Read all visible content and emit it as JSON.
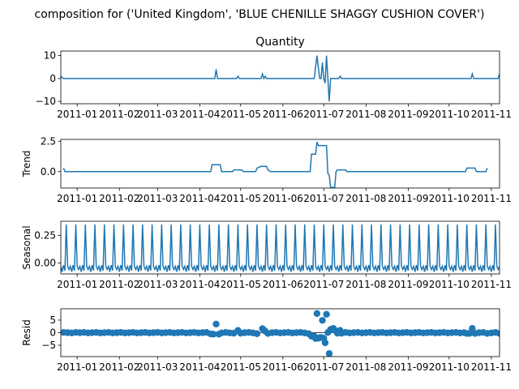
{
  "figure": {
    "suptitle": "composition for ('United Kingdom', 'BLUE CHENILLE SHAGGY CUSHION COVER')"
  },
  "colors": {
    "line": "#1f77b4",
    "axis": "#000000",
    "background": "#ffffff"
  },
  "chart_data": [
    {
      "type": "line",
      "name": "observed",
      "title": "Quantity",
      "ylabel": "",
      "ylim": [
        -11,
        12
      ],
      "yticks": [
        {
          "v": 10,
          "label": "10"
        },
        {
          "v": 0,
          "label": "0"
        },
        {
          "v": -10,
          "label": "−10"
        }
      ],
      "xlim": [
        0,
        322
      ],
      "xticks": [
        {
          "v": 12,
          "label": "2011-01"
        },
        {
          "v": 43,
          "label": "2011-02"
        },
        {
          "v": 71,
          "label": "2011-03"
        },
        {
          "v": 102,
          "label": "2011-04"
        },
        {
          "v": 132,
          "label": "2011-05"
        },
        {
          "v": 163,
          "label": "2011-06"
        },
        {
          "v": 193,
          "label": "2011-07"
        },
        {
          "v": 224,
          "label": "2011-08"
        },
        {
          "v": 255,
          "label": "2011-09"
        },
        {
          "v": 285,
          "label": "2011-10"
        },
        {
          "v": 316,
          "label": "2011-11"
        }
      ],
      "points": [
        [
          0,
          1
        ],
        [
          2,
          0
        ],
        [
          113,
          0
        ],
        [
          114,
          4
        ],
        [
          115,
          0
        ],
        [
          129,
          0
        ],
        [
          130,
          1
        ],
        [
          131,
          0
        ],
        [
          147,
          0
        ],
        [
          148,
          2
        ],
        [
          149,
          0
        ],
        [
          150,
          1
        ],
        [
          151,
          0
        ],
        [
          186,
          0
        ],
        [
          188,
          10
        ],
        [
          190,
          0
        ],
        [
          191,
          0
        ],
        [
          192,
          7
        ],
        [
          193,
          0
        ],
        [
          194,
          -2
        ],
        [
          195,
          10
        ],
        [
          196,
          0
        ],
        [
          197,
          -10
        ],
        [
          198,
          0
        ],
        [
          204,
          0
        ],
        [
          205,
          1
        ],
        [
          206,
          0
        ],
        [
          301,
          0
        ],
        [
          302,
          2
        ],
        [
          303,
          0
        ],
        [
          321,
          0
        ],
        [
          322,
          2
        ]
      ]
    },
    {
      "type": "line",
      "name": "trend",
      "title": "",
      "ylabel": "Trend",
      "ylim": [
        -1.35,
        2.65
      ],
      "yticks": [
        {
          "v": 2.5,
          "label": "2.5"
        },
        {
          "v": 0,
          "label": "0.0"
        }
      ],
      "xlim": [
        0,
        322
      ],
      "xticks": [
        {
          "v": 12,
          "label": "2011-01"
        },
        {
          "v": 43,
          "label": "2011-02"
        },
        {
          "v": 71,
          "label": "2011-03"
        },
        {
          "v": 102,
          "label": "2011-04"
        },
        {
          "v": 132,
          "label": "2011-05"
        },
        {
          "v": 163,
          "label": "2011-06"
        },
        {
          "v": 193,
          "label": "2011-07"
        },
        {
          "v": 224,
          "label": "2011-08"
        },
        {
          "v": 255,
          "label": "2011-09"
        },
        {
          "v": 285,
          "label": "2011-10"
        },
        {
          "v": 316,
          "label": "2011-11"
        }
      ],
      "points": [
        [
          2,
          0.3
        ],
        [
          3,
          0.0
        ],
        [
          110,
          0.0
        ],
        [
          111,
          0.57
        ],
        [
          117,
          0.57
        ],
        [
          118,
          0.0
        ],
        [
          126,
          0.0
        ],
        [
          127,
          0.14
        ],
        [
          133,
          0.14
        ],
        [
          134,
          0.0
        ],
        [
          143,
          0.0
        ],
        [
          144,
          0.29
        ],
        [
          147,
          0.43
        ],
        [
          151,
          0.43
        ],
        [
          152,
          0.14
        ],
        [
          154,
          0.0
        ],
        [
          183,
          0.0
        ],
        [
          184,
          1.43
        ],
        [
          187,
          1.43
        ],
        [
          188,
          2.43
        ],
        [
          189,
          2.14
        ],
        [
          195,
          2.14
        ],
        [
          196,
          -0.14
        ],
        [
          197,
          -0.3
        ],
        [
          198,
          -1.3
        ],
        [
          201,
          -1.3
        ],
        [
          202,
          0.0
        ],
        [
          203,
          0.14
        ],
        [
          209,
          0.14
        ],
        [
          210,
          0.0
        ],
        [
          297,
          0.0
        ],
        [
          298,
          0.29
        ],
        [
          304,
          0.29
        ],
        [
          305,
          0.0
        ],
        [
          312,
          0.0
        ],
        [
          313,
          0.29
        ]
      ]
    },
    {
      "type": "line",
      "name": "seasonal",
      "title": "",
      "ylabel": "Seasonal",
      "ylim": [
        -0.1,
        0.38
      ],
      "yticks": [
        {
          "v": 0.25,
          "label": "0.25"
        },
        {
          "v": 0,
          "label": "0.00"
        }
      ],
      "xlim": [
        0,
        322
      ],
      "xticks": [
        {
          "v": 12,
          "label": "2011-01"
        },
        {
          "v": 43,
          "label": "2011-02"
        },
        {
          "v": 71,
          "label": "2011-03"
        },
        {
          "v": 102,
          "label": "2011-04"
        },
        {
          "v": 132,
          "label": "2011-05"
        },
        {
          "v": 163,
          "label": "2011-06"
        },
        {
          "v": 193,
          "label": "2011-07"
        },
        {
          "v": 224,
          "label": "2011-08"
        },
        {
          "v": 255,
          "label": "2011-09"
        },
        {
          "v": 285,
          "label": "2011-10"
        },
        {
          "v": 316,
          "label": "2011-11"
        }
      ],
      "period_pattern": [
        -0.03,
        -0.08,
        -0.02,
        -0.07,
        0.35,
        -0.03,
        -0.06
      ],
      "points": []
    },
    {
      "type": "scatter",
      "name": "resid",
      "title": "",
      "ylabel": "Resid",
      "ylim": [
        -9.5,
        9.5
      ],
      "yticks": [
        {
          "v": 5,
          "label": "5"
        },
        {
          "v": 0,
          "label": "0"
        },
        {
          "v": -5,
          "label": "−5"
        }
      ],
      "xlim": [
        0,
        322
      ],
      "xticks": [
        {
          "v": 12,
          "label": "2011-01"
        },
        {
          "v": 43,
          "label": "2011-02"
        },
        {
          "v": 71,
          "label": "2011-03"
        },
        {
          "v": 102,
          "label": "2011-04"
        },
        {
          "v": 132,
          "label": "2011-05"
        },
        {
          "v": 163,
          "label": "2011-06"
        },
        {
          "v": 193,
          "label": "2011-07"
        },
        {
          "v": 224,
          "label": "2011-08"
        },
        {
          "v": 255,
          "label": "2011-09"
        },
        {
          "v": 285,
          "label": "2011-10"
        },
        {
          "v": 316,
          "label": "2011-11"
        }
      ],
      "baseline": 0,
      "points": [
        [
          2,
          0.1
        ],
        [
          5,
          0
        ],
        [
          8,
          -0.1
        ],
        [
          11,
          0.1
        ],
        [
          14,
          0
        ],
        [
          17,
          0.1
        ],
        [
          20,
          -0.1
        ],
        [
          23,
          0
        ],
        [
          26,
          0.1
        ],
        [
          29,
          -0.1
        ],
        [
          32,
          0
        ],
        [
          35,
          0.1
        ],
        [
          38,
          -0.1
        ],
        [
          41,
          0
        ],
        [
          44,
          0.1
        ],
        [
          47,
          -0.1
        ],
        [
          50,
          0
        ],
        [
          53,
          0.1
        ],
        [
          56,
          -0.1
        ],
        [
          59,
          0
        ],
        [
          62,
          0.1
        ],
        [
          65,
          -0.1
        ],
        [
          68,
          0
        ],
        [
          71,
          0.1
        ],
        [
          74,
          -0.1
        ],
        [
          77,
          0
        ],
        [
          80,
          0.1
        ],
        [
          83,
          -0.1
        ],
        [
          86,
          0
        ],
        [
          89,
          0.1
        ],
        [
          92,
          -0.1
        ],
        [
          95,
          0
        ],
        [
          98,
          0.1
        ],
        [
          101,
          -0.1
        ],
        [
          104,
          0
        ],
        [
          107,
          0.1
        ],
        [
          110,
          -0.5
        ],
        [
          112,
          -0.6
        ],
        [
          114,
          3.4
        ],
        [
          116,
          -0.6
        ],
        [
          118,
          -0.1
        ],
        [
          121,
          0.1
        ],
        [
          124,
          -0.1
        ],
        [
          127,
          -0.2
        ],
        [
          130,
          0.9
        ],
        [
          132,
          -0.2
        ],
        [
          135,
          0
        ],
        [
          138,
          0.1
        ],
        [
          141,
          -0.1
        ],
        [
          144,
          -0.4
        ],
        [
          148,
          1.6
        ],
        [
          149,
          1.0
        ],
        [
          150,
          0.6
        ],
        [
          152,
          -0.3
        ],
        [
          155,
          0
        ],
        [
          158,
          0.1
        ],
        [
          161,
          -0.1
        ],
        [
          164,
          0
        ],
        [
          167,
          0.1
        ],
        [
          170,
          -0.1
        ],
        [
          173,
          0
        ],
        [
          176,
          0.1
        ],
        [
          179,
          -0.1
        ],
        [
          182,
          -0.4
        ],
        [
          184,
          -1.4
        ],
        [
          186,
          -1.4
        ],
        [
          187,
          -2.3
        ],
        [
          188,
          7.6
        ],
        [
          189,
          -2.2
        ],
        [
          190,
          -2.0
        ],
        [
          191,
          -1.9
        ],
        [
          192,
          4.9
        ],
        [
          193,
          -2.2
        ],
        [
          194,
          -4.0
        ],
        [
          195,
          7.3
        ],
        [
          196,
          0.1
        ],
        [
          197,
          -8.3
        ],
        [
          198,
          1.3
        ],
        [
          199,
          1.3
        ],
        [
          200,
          1.7
        ],
        [
          201,
          1.0
        ],
        [
          203,
          -0.2
        ],
        [
          205,
          0.9
        ],
        [
          206,
          -0.2
        ],
        [
          209,
          0.1
        ],
        [
          212,
          -0.1
        ],
        [
          215,
          0
        ],
        [
          218,
          0.1
        ],
        [
          221,
          -0.1
        ],
        [
          224,
          0
        ],
        [
          227,
          0.1
        ],
        [
          230,
          -0.1
        ],
        [
          233,
          0
        ],
        [
          236,
          0.1
        ],
        [
          239,
          -0.1
        ],
        [
          242,
          0
        ],
        [
          245,
          0.1
        ],
        [
          248,
          -0.1
        ],
        [
          251,
          0
        ],
        [
          254,
          0.1
        ],
        [
          257,
          -0.1
        ],
        [
          260,
          0
        ],
        [
          263,
          0.1
        ],
        [
          266,
          -0.1
        ],
        [
          269,
          0
        ],
        [
          272,
          0.1
        ],
        [
          275,
          -0.1
        ],
        [
          278,
          0
        ],
        [
          281,
          0.1
        ],
        [
          284,
          -0.1
        ],
        [
          287,
          0
        ],
        [
          290,
          0.1
        ],
        [
          293,
          -0.1
        ],
        [
          296,
          0
        ],
        [
          298,
          -0.3
        ],
        [
          300,
          -0.3
        ],
        [
          302,
          1.7
        ],
        [
          304,
          -0.3
        ],
        [
          307,
          0
        ],
        [
          310,
          0.1
        ],
        [
          313,
          -0.3
        ],
        [
          316,
          -0.1
        ],
        [
          319,
          0.1
        ],
        [
          322,
          -0.3
        ]
      ]
    }
  ]
}
